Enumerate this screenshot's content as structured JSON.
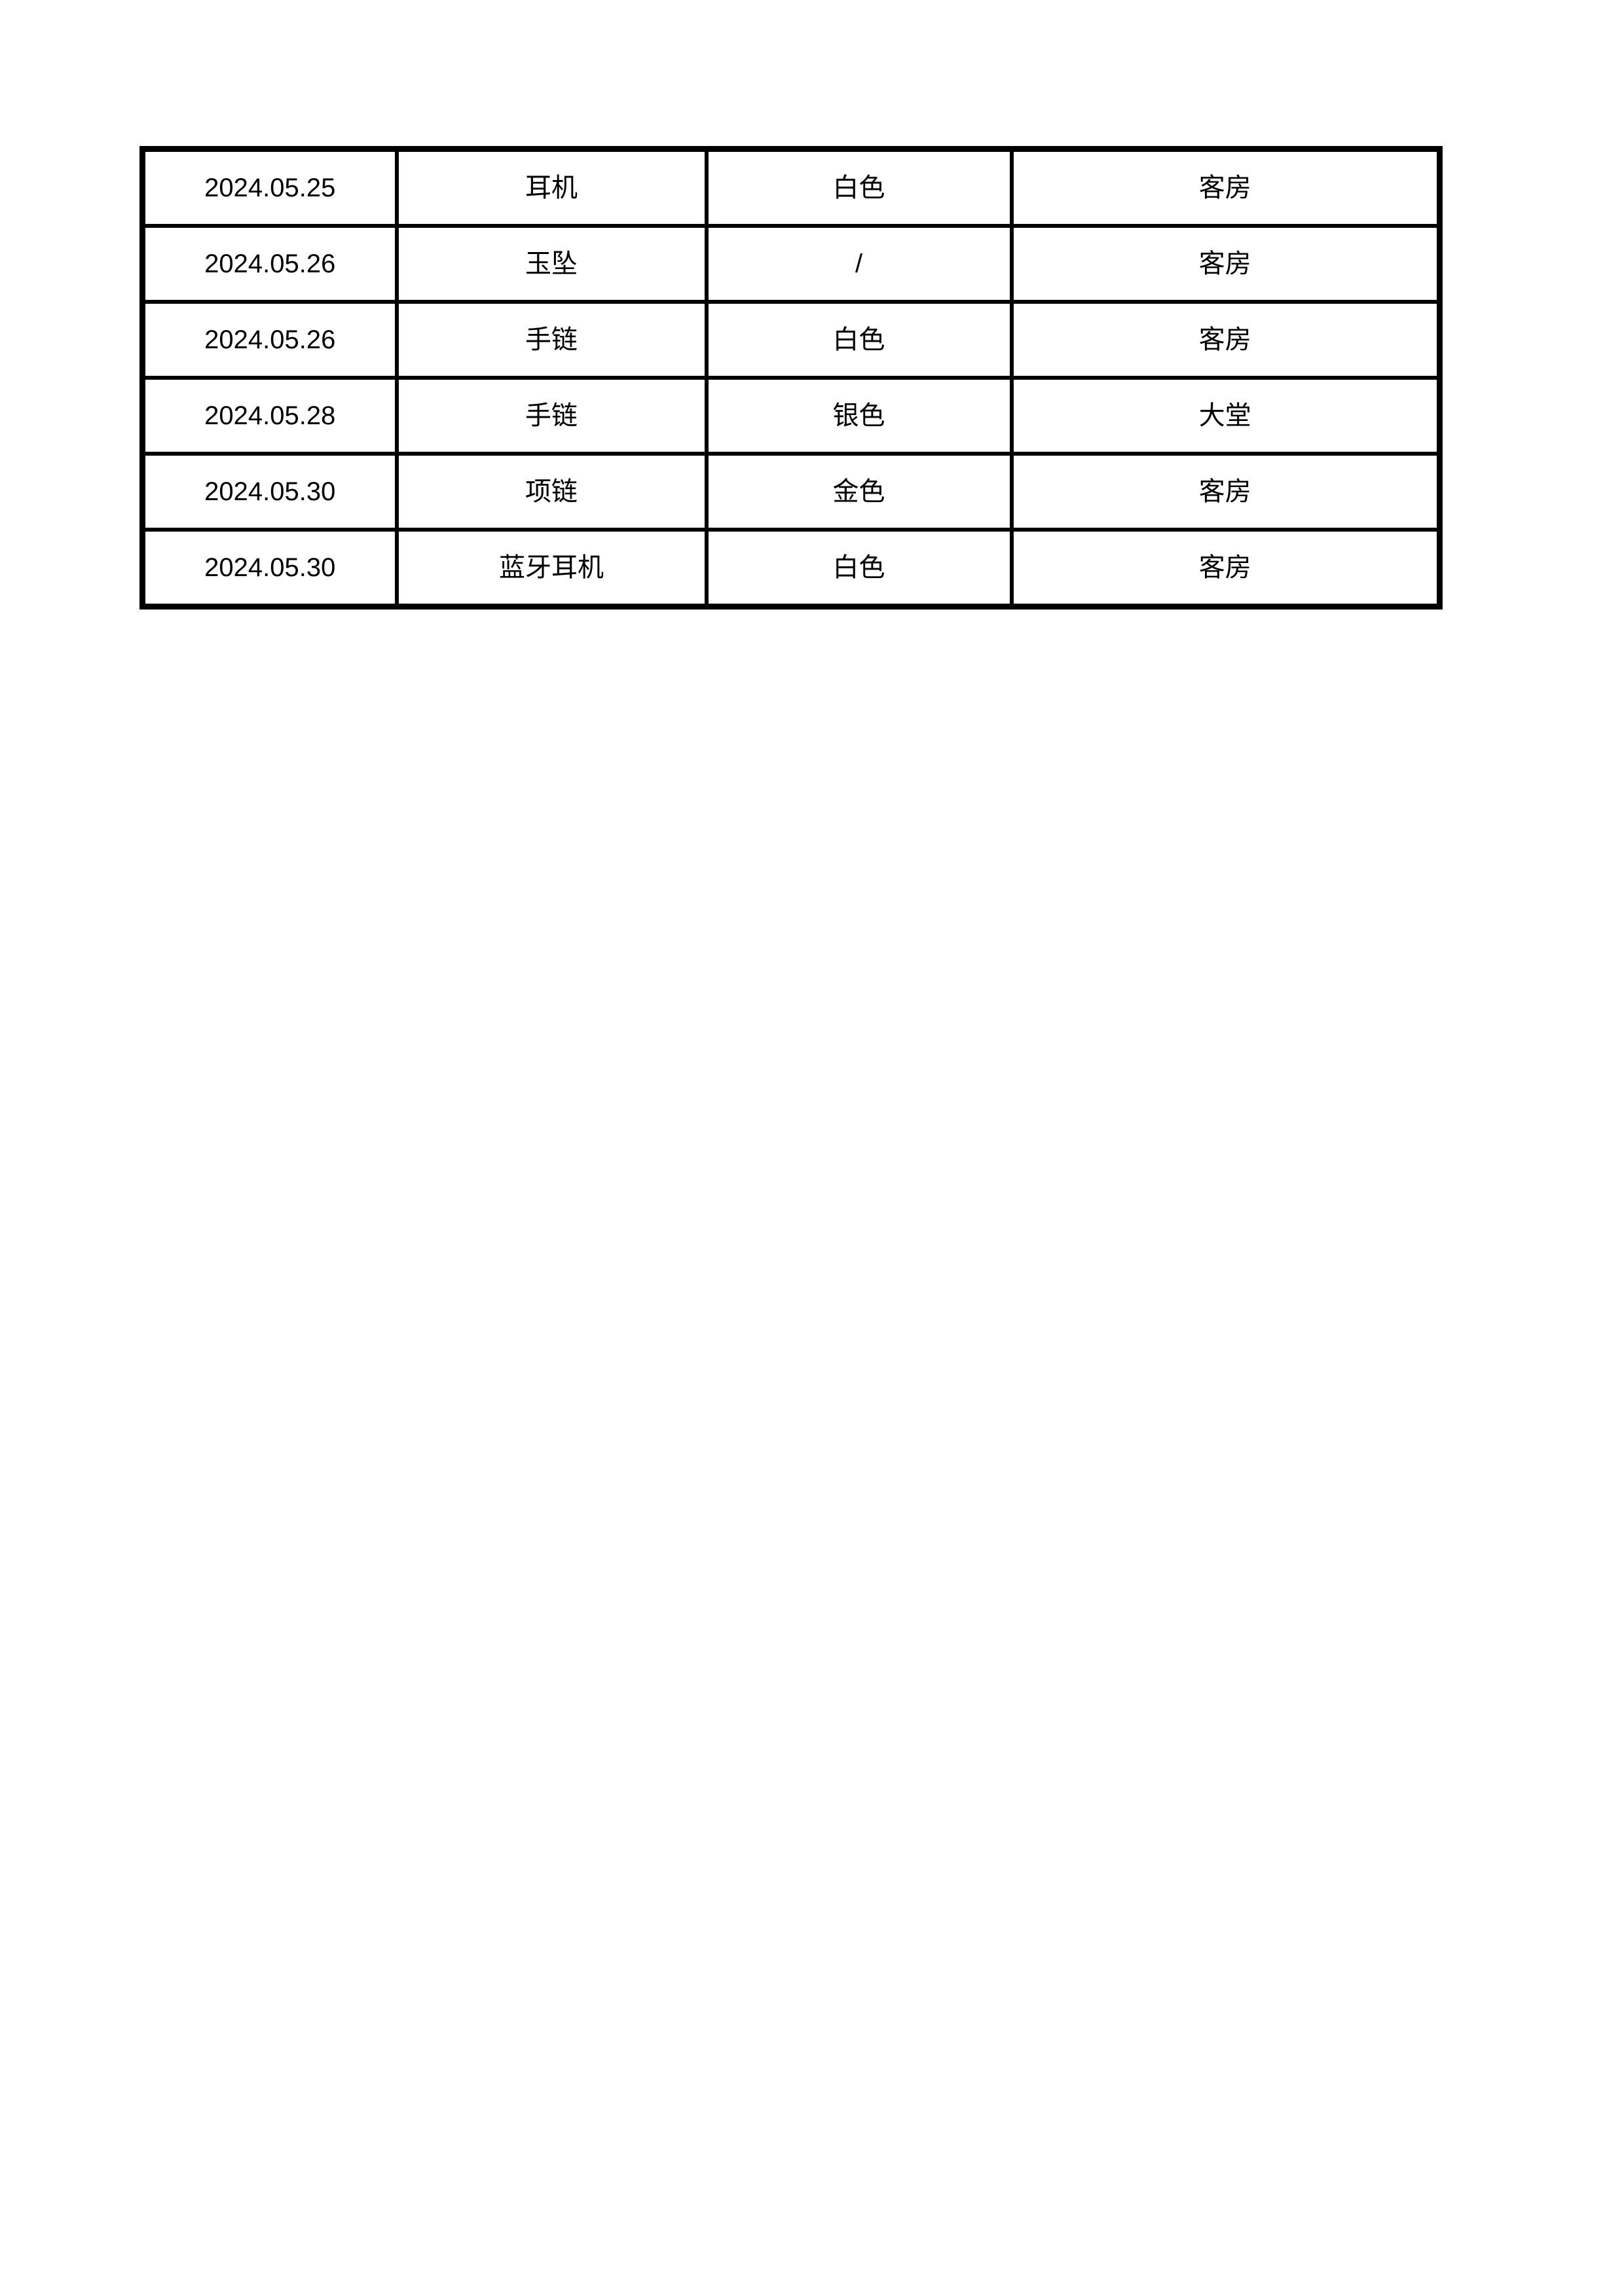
{
  "page": {
    "background_color": "#ffffff",
    "text_color": "#000000",
    "border_color": "#000000"
  },
  "table": {
    "rows": [
      {
        "cells": [
          "2024.05.25",
          "耳机",
          "白色",
          "客房"
        ]
      },
      {
        "cells": [
          "2024.05.26",
          "玉坠",
          "/",
          "客房"
        ]
      },
      {
        "cells": [
          "2024.05.26",
          "手链",
          "白色",
          "客房"
        ]
      },
      {
        "cells": [
          "2024.05.28",
          "手链",
          "银色",
          "大堂"
        ]
      },
      {
        "cells": [
          "2024.05.30",
          "项链",
          "金色",
          "客房"
        ]
      },
      {
        "cells": [
          "2024.05.30",
          "蓝牙耳机",
          "白色",
          "客房"
        ]
      }
    ]
  }
}
